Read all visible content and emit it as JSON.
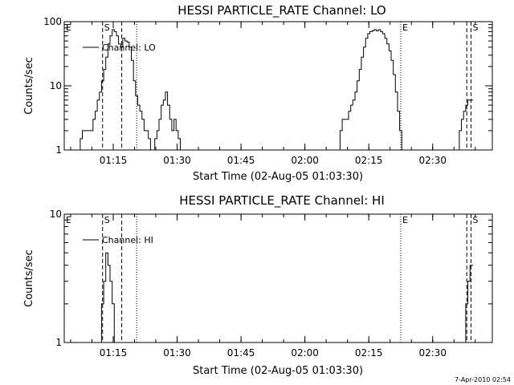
{
  "colors": {
    "background": "#ffffff",
    "foreground": "#000000"
  },
  "footer": {
    "timestamp": "7-Apr-2010 02:54"
  },
  "chart_data": [
    {
      "type": "line",
      "title": "HESSI PARTICLE_RATE Channel: LO",
      "xlabel": "Start Time (02-Aug-05 01:03:30)",
      "ylabel": "Counts/sec",
      "yscale": "log",
      "xlim": [
        "01:03:30",
        "02:44:00"
      ],
      "ylim": [
        1,
        100
      ],
      "x_ticks": [
        "01:15",
        "01:30",
        "01:45",
        "02:00",
        "02:15",
        "02:30"
      ],
      "y_ticks": [
        "1",
        "10",
        "100"
      ],
      "grid": false,
      "legend": {
        "entries": [
          "Channel: LO"
        ],
        "position": "top-left"
      },
      "series": [
        {
          "name": "Channel: LO",
          "segments": [
            {
              "x": [
                "01:07:00",
                "01:07:30",
                "01:08:00",
                "01:08:30",
                "01:09:00",
                "01:09:30",
                "01:10:00",
                "01:10:30",
                "01:11:00",
                "01:11:30",
                "01:12:00",
                "01:12:30",
                "01:13:00",
                "01:13:30",
                "01:14:00",
                "01:14:30",
                "01:15:00",
                "01:15:30",
                "01:16:00",
                "01:16:30",
                "01:17:00",
                "01:17:30",
                "01:18:00",
                "01:18:30",
                "01:19:00",
                "01:19:30",
                "01:20:00",
                "01:20:30",
                "01:21:00",
                "01:21:30",
                "01:22:00",
                "01:22:30",
                "01:23:00",
                "01:23:30",
                "01:24:00",
                "01:24:30",
                "01:25:00",
                "01:25:30",
                "01:26:00",
                "01:26:30",
                "01:27:00",
                "01:27:30",
                "01:28:00",
                "01:28:30",
                "01:29:00",
                "01:29:30",
                "01:30:00",
                "01:30:30",
                "01:31:00",
                "01:31:30",
                "01:32:00",
                "01:32:30",
                "01:33:00",
                "01:33:30"
              ],
              "y": [
                1,
                1.5,
                2,
                2,
                2,
                2,
                2,
                3,
                4,
                6,
                8,
                12,
                18,
                28,
                45,
                60,
                75,
                70,
                60,
                45,
                40,
                55,
                50,
                48,
                40,
                25,
                12,
                7,
                5,
                4,
                3,
                2,
                2,
                1.5,
                1,
                1,
                1.5,
                2,
                3,
                5,
                6,
                8,
                5,
                3,
                2,
                3,
                2,
                1.5,
                1,
                1,
                1,
                1,
                1,
                1
              ]
            },
            {
              "x": [
                "02:08:00",
                "02:08:30",
                "02:09:00",
                "02:09:30",
                "02:10:00",
                "02:10:30",
                "02:11:00",
                "02:11:30",
                "02:12:00",
                "02:12:30",
                "02:13:00",
                "02:13:30",
                "02:14:00",
                "02:14:30",
                "02:15:00",
                "02:15:30",
                "02:16:00",
                "02:16:30",
                "02:17:00",
                "02:17:30",
                "02:18:00",
                "02:18:30",
                "02:19:00",
                "02:19:30",
                "02:20:00",
                "02:20:30",
                "02:21:00",
                "02:21:30",
                "02:22:00",
                "02:22:30",
                "02:23:00"
              ],
              "y": [
                1,
                2,
                3,
                3,
                3,
                4,
                5,
                6,
                8,
                12,
                18,
                28,
                40,
                55,
                65,
                70,
                72,
                75,
                72,
                75,
                70,
                65,
                55,
                45,
                35,
                25,
                15,
                8,
                4,
                2,
                1
              ]
            },
            {
              "x": [
                "02:36:00",
                "02:36:30",
                "02:37:00",
                "02:37:30",
                "02:38:00",
                "02:38:30",
                "02:39:00",
                "02:39:30"
              ],
              "y": [
                1,
                2,
                3,
                4,
                5,
                6,
                6,
                6
              ]
            }
          ]
        }
      ],
      "annotations": [
        {
          "label": "E",
          "x": "01:03:30",
          "style": "dotted"
        },
        {
          "label": "S",
          "x": "01:12:30",
          "style": "dashed"
        },
        {
          "label": "",
          "x": "01:17:00",
          "style": "dashed"
        },
        {
          "label": "",
          "x": "01:20:30",
          "style": "dotted"
        },
        {
          "label": "E",
          "x": "02:22:30",
          "style": "dotted"
        },
        {
          "label": "",
          "x": "02:38:00",
          "style": "dashed"
        },
        {
          "label": "S",
          "x": "02:39:00",
          "style": "dashed"
        }
      ]
    },
    {
      "type": "line",
      "title": "HESSI PARTICLE_RATE Channel: HI",
      "xlabel": "Start Time (02-Aug-05 01:03:30)",
      "ylabel": "Counts/sec",
      "yscale": "log",
      "xlim": [
        "01:03:30",
        "02:44:00"
      ],
      "ylim": [
        1,
        10
      ],
      "x_ticks": [
        "01:15",
        "01:30",
        "01:45",
        "02:00",
        "02:15",
        "02:30"
      ],
      "y_ticks": [
        "1",
        "10"
      ],
      "grid": false,
      "legend": {
        "entries": [
          "Channel: HI"
        ],
        "position": "top-left"
      },
      "series": [
        {
          "name": "Channel: HI",
          "segments": [
            {
              "x": [
                "01:12:00",
                "01:12:30",
                "01:13:00",
                "01:13:30",
                "01:14:00",
                "01:14:30",
                "01:15:00",
                "01:15:30"
              ],
              "y": [
                1,
                2,
                3,
                5,
                4,
                3,
                2,
                1
              ]
            },
            {
              "x": [
                "02:37:30",
                "02:38:00",
                "02:38:30",
                "02:39:00",
                "02:39:30"
              ],
              "y": [
                1,
                2,
                3,
                4,
                4
              ]
            }
          ]
        }
      ],
      "annotations": [
        {
          "label": "E",
          "x": "01:03:30",
          "style": "dotted"
        },
        {
          "label": "S",
          "x": "01:12:30",
          "style": "dashed"
        },
        {
          "label": "",
          "x": "01:17:00",
          "style": "dashed"
        },
        {
          "label": "",
          "x": "01:20:30",
          "style": "dotted"
        },
        {
          "label": "E",
          "x": "02:22:30",
          "style": "dotted"
        },
        {
          "label": "",
          "x": "02:38:00",
          "style": "dashed"
        },
        {
          "label": "S",
          "x": "02:39:00",
          "style": "dashed"
        }
      ]
    }
  ]
}
